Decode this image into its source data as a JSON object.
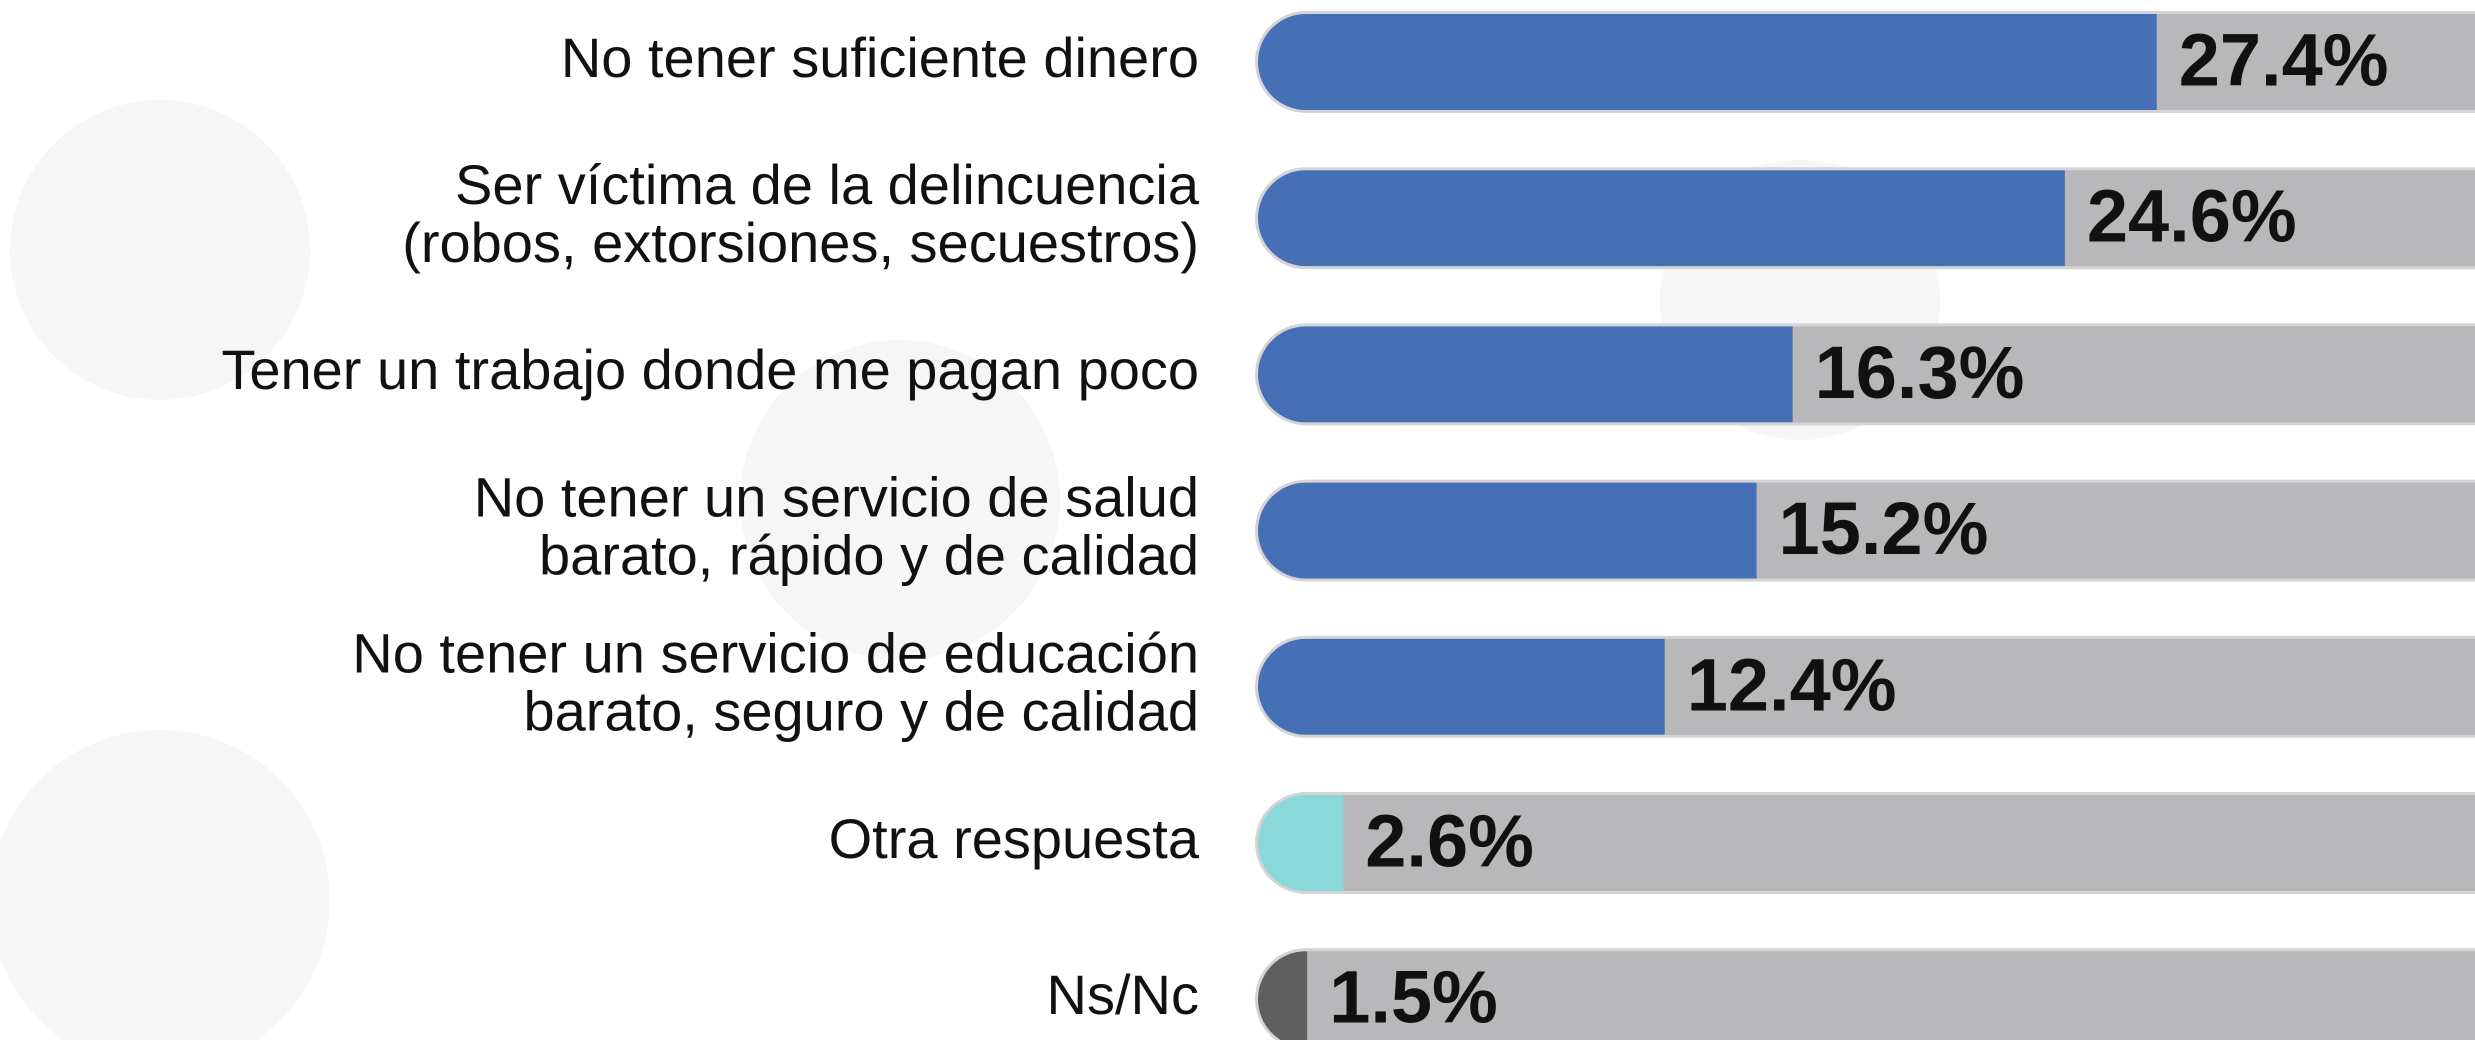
{
  "chart_data": {
    "type": "bar",
    "categories": [
      [
        "No tener suficiente dinero"
      ],
      [
        "Ser víctima de la delincuencia",
        "(robos, extorsiones, secuestros)"
      ],
      [
        "Tener un trabajo donde me pagan poco"
      ],
      [
        "No tener un servicio de salud",
        "barato, rápido y de calidad"
      ],
      [
        "No tener un servicio de educación",
        "barato, seguro y de calidad"
      ],
      [
        "Otra respuesta"
      ],
      [
        "Ns/Nc"
      ]
    ],
    "values": [
      27.4,
      24.6,
      16.3,
      15.2,
      12.4,
      2.6,
      1.5
    ],
    "value_labels": [
      "27.4%",
      "24.6%",
      "16.3%",
      "15.2%",
      "12.4%",
      "2.6%",
      "1.5%"
    ],
    "colors": [
      "#4670b5",
      "#4670b5",
      "#4670b5",
      "#4670b5",
      "#4670b5",
      "#8ad9d8",
      "#5f5f5f"
    ]
  }
}
